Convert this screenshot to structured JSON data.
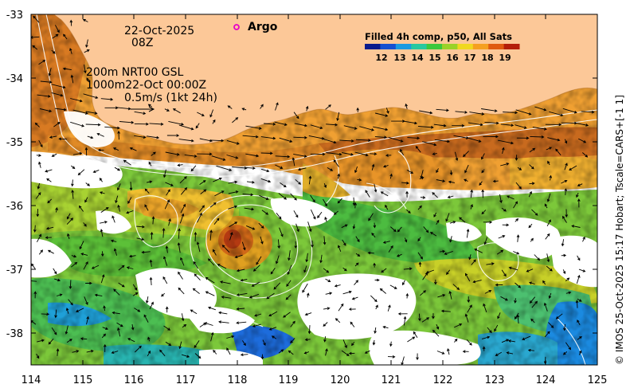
{
  "map": {
    "lon_ticks": [
      "114",
      "115",
      "116",
      "117",
      "118",
      "119",
      "120",
      "121",
      "122",
      "123",
      "124",
      "125"
    ],
    "lat_ticks": [
      "-33",
      "-34",
      "-35",
      "-36",
      "-37",
      "-38"
    ],
    "lon_range": [
      114,
      125
    ],
    "lat_range": [
      -38.5,
      -33
    ]
  },
  "annotations": {
    "date": "22-Oct-2025",
    "hour": "08Z",
    "line1": "200m  NRT00 GSL",
    "line2": "1000m22-Oct 00:00Z",
    "scale": "0.5m/s (1kt 24h)"
  },
  "argo": {
    "label": "Argo",
    "marker_color": "#e600c8",
    "lon": 117.98,
    "lat": -33.19
  },
  "colorbar": {
    "title": "Filled 4h comp, p50, All Sats",
    "labels": [
      "12",
      "13",
      "14",
      "15",
      "16",
      "17",
      "18",
      "19"
    ],
    "colors": [
      "#0a1a8c",
      "#1550d0",
      "#1a9ae0",
      "#28c8a0",
      "#3cc83c",
      "#9ad228",
      "#f0d820",
      "#f5a020",
      "#e05a10",
      "#b41e0a"
    ]
  },
  "credit": "© IMOS 25-Oct-2025 15:17 Hobart; Tscale=CARS+[-1 1]",
  "colors": {
    "land": "#fcc898",
    "no_data": "#ffffff"
  }
}
